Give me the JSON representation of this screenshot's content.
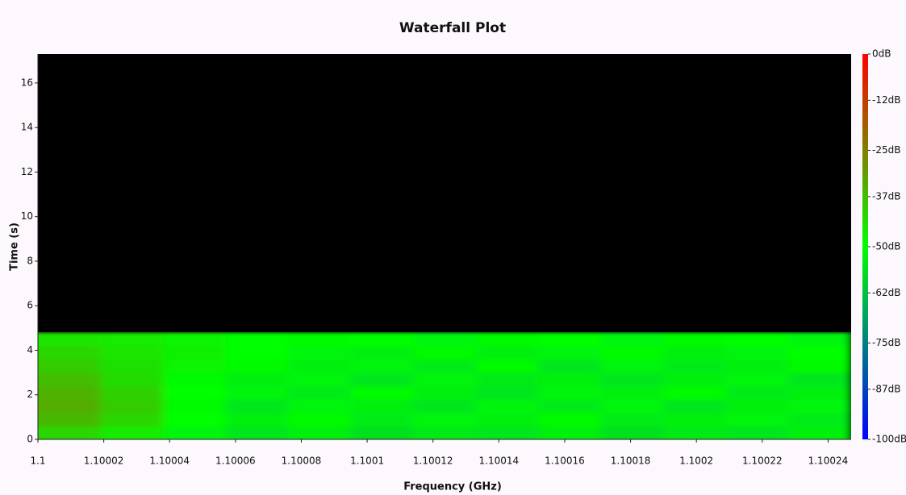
{
  "chart_data": {
    "type": "heatmap",
    "title": "Waterfall Plot",
    "x_label": "Frequency (GHz)",
    "y_label": "Time (s)",
    "xlim": [
      1.1,
      1.100247
    ],
    "ylim": [
      0,
      17.3
    ],
    "xticks": [
      1.1,
      1.10002,
      1.10004,
      1.10006,
      1.10008,
      1.1001,
      1.10012,
      1.10014,
      1.10016,
      1.10018,
      1.1002,
      1.10022,
      1.10024
    ],
    "yticks": [
      0,
      2,
      4,
      6,
      8,
      10,
      12,
      14,
      16
    ],
    "xbins": [
      1.1,
      1.100019,
      1.100038,
      1.100057,
      1.100076,
      1.100095,
      1.100114,
      1.100133,
      1.100152,
      1.100171,
      1.10019,
      1.100209,
      1.100228,
      1.100247
    ],
    "ybins": [
      0,
      0.6,
      1.2,
      1.8,
      2.4,
      3,
      3.6,
      4.2,
      4.8
    ],
    "z": [
      [
        -42,
        -46,
        -52,
        -55,
        -53,
        -56,
        -54,
        -55,
        -53,
        -56,
        -54,
        -55,
        -53
      ],
      [
        -36,
        -42,
        -50,
        -53,
        -51,
        -54,
        -52,
        -53,
        -51,
        -54,
        -53,
        -52,
        -54
      ],
      [
        -34,
        -40,
        -49,
        -55,
        -52,
        -53,
        -55,
        -52,
        -54,
        -52,
        -55,
        -53,
        -52
      ],
      [
        -35,
        -41,
        -50,
        -52,
        -54,
        -51,
        -53,
        -55,
        -52,
        -53,
        -51,
        -54,
        -53
      ],
      [
        -37,
        -43,
        -49,
        -53,
        -52,
        -55,
        -52,
        -54,
        -53,
        -55,
        -53,
        -52,
        -55
      ],
      [
        -40,
        -44,
        -48,
        -51,
        -53,
        -52,
        -54,
        -51,
        -55,
        -52,
        -54,
        -53,
        -51
      ],
      [
        -42,
        -45,
        -47,
        -50,
        -52,
        -53,
        -51,
        -53,
        -52,
        -51,
        -53,
        -52,
        -50
      ],
      [
        -45,
        -46,
        -48,
        -50,
        -51,
        -50,
        -52,
        -51,
        -50,
        -52,
        -51,
        -50,
        -52
      ]
    ],
    "clim": [
      -100,
      0
    ],
    "colorscale": [
      "#0000ff",
      "#00ff00",
      "#ff0000"
    ],
    "cticks": [
      {
        "value": 0,
        "label": "0dB"
      },
      {
        "value": -12,
        "label": "-12dB"
      },
      {
        "value": -25,
        "label": "-25dB"
      },
      {
        "value": -37,
        "label": "-37dB"
      },
      {
        "value": -50,
        "label": "-50dB"
      },
      {
        "value": -62,
        "label": "-62dB"
      },
      {
        "value": -75,
        "label": "-75dB"
      },
      {
        "value": -87,
        "label": "-87dB"
      },
      {
        "value": -100,
        "label": "-100dB"
      }
    ]
  }
}
